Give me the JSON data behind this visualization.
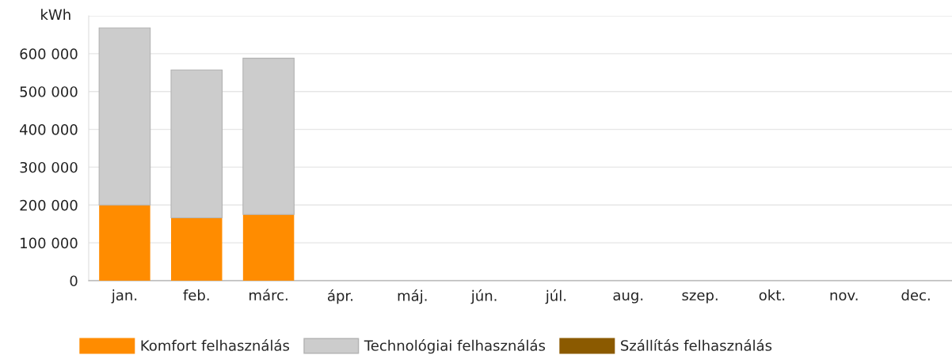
{
  "chart_data": {
    "type": "bar",
    "stacked": true,
    "ylabel": "kWh",
    "categories": [
      "jan.",
      "feb.",
      "márc.",
      "ápr.",
      "máj.",
      "jún.",
      "júl.",
      "aug.",
      "szep.",
      "okt.",
      "nov.",
      "dec."
    ],
    "series": [
      {
        "name": "Komfort felhasználás",
        "color": "#ff8c00",
        "values": [
          200000,
          166000,
          175000,
          null,
          null,
          null,
          null,
          null,
          null,
          null,
          null,
          null
        ]
      },
      {
        "name": "Technológiai felhasználás",
        "color": "#cccccc",
        "values": [
          468000,
          391000,
          413000,
          null,
          null,
          null,
          null,
          null,
          null,
          null,
          null,
          null
        ]
      },
      {
        "name": "Szállítás felhasználás",
        "color": "#8b5a00",
        "values": [
          0,
          0,
          0,
          null,
          null,
          null,
          null,
          null,
          null,
          null,
          null,
          null
        ]
      }
    ],
    "ylim": [
      0,
      700000
    ],
    "yticks": [
      {
        "value": 0,
        "label": "0"
      },
      {
        "value": 100000,
        "label": "100 000"
      },
      {
        "value": 200000,
        "label": "200 000"
      },
      {
        "value": 300000,
        "label": "300 000"
      },
      {
        "value": 400000,
        "label": "400 000"
      },
      {
        "value": 500000,
        "label": "500 000"
      },
      {
        "value": 600000,
        "label": "600 000"
      },
      {
        "value": 700000,
        "label": null
      }
    ],
    "grid": "y",
    "legend": "bottom"
  }
}
